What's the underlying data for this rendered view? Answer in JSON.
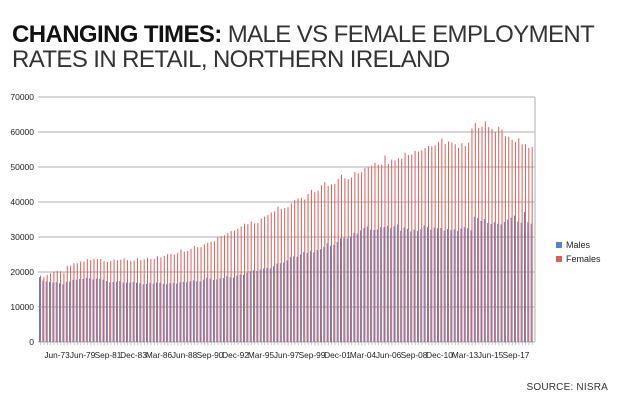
{
  "header": {
    "title_bold": "CHANGING TIMES:",
    "title_rest": " MALE VS FEMALE EMPLOYMENT RATES IN RETAIL, NORTHERN IRELAND"
  },
  "source": "SOURCE: NISRA",
  "colors": {
    "males": "#5b7fc4",
    "females": "#d9605a",
    "grid": "#c8c8c8"
  },
  "chart_data": {
    "type": "bar",
    "title": "CHANGING TIMES: MALE VS FEMALE EMPLOYMENT RATES IN RETAIL, NORTHERN IRELAND",
    "xlabel": "",
    "ylabel": "",
    "ylim": [
      0,
      70000
    ],
    "yticks": [
      "0",
      "10000",
      "20000",
      "30000",
      "40000",
      "50000",
      "60000",
      "70000"
    ],
    "grid": true,
    "legend_position": "right",
    "xtick_labels": [
      "Jun-73",
      "Jun-79",
      "Sep-81",
      "Dec-83",
      "Mar-86",
      "Jun-88",
      "Sep-90",
      "Dec-92",
      "Mar-95",
      "Jun-97",
      "Sep-99",
      "Dec-01",
      "Mar-04",
      "Jun-06",
      "Sep-08",
      "Dec-10",
      "Mar-13",
      "Jun-15",
      "Sep-17"
    ],
    "series": [
      {
        "name": "Males",
        "values": [
          18500,
          17500,
          17300,
          17200,
          17000,
          17100,
          16800,
          16500,
          17200,
          17300,
          17800,
          17800,
          18000,
          18000,
          18300,
          18200,
          17900,
          18100,
          18000,
          17800,
          17400,
          17000,
          17100,
          17200,
          17400,
          17000,
          17000,
          17000,
          17100,
          16900,
          16800,
          16500,
          16600,
          16800,
          16700,
          17000,
          16900,
          16600,
          16500,
          16800,
          16900,
          16700,
          17000,
          17200,
          17100,
          17300,
          17600,
          17400,
          17300,
          17800,
          18400,
          18100,
          17700,
          17900,
          18200,
          18300,
          18800,
          18500,
          18400,
          19000,
          19300,
          19200,
          19800,
          20200,
          20500,
          20300,
          20700,
          21000,
          21200,
          21100,
          21700,
          22400,
          22500,
          22700,
          23300,
          24300,
          24500,
          24400,
          25000,
          25700,
          25500,
          26000,
          25600,
          26300,
          26500,
          27200,
          28200,
          27500,
          27800,
          28600,
          29600,
          29800,
          29600,
          30100,
          31200,
          31000,
          31900,
          32600,
          33000,
          32100,
          32000,
          32200,
          32800,
          32800,
          33200,
          32600,
          33100,
          33600,
          31800,
          32700,
          32300,
          31600,
          32100,
          31700,
          32200,
          33300,
          32800,
          32100,
          32700,
          32500,
          32600,
          31800,
          32300,
          32000,
          32200,
          31700,
          32400,
          32800,
          32500,
          31900,
          35800,
          35400,
          34600,
          35100,
          34000,
          33700,
          34200,
          33800,
          33600,
          34300,
          35000,
          35500,
          36100,
          34400,
          34100,
          37100,
          34200,
          33800
        ]
      },
      {
        "name": "Females",
        "values": [
          19000,
          18500,
          19200,
          19600,
          20100,
          20300,
          20200,
          19800,
          21800,
          21800,
          22500,
          22500,
          23000,
          23000,
          23700,
          23400,
          23700,
          23700,
          23700,
          23100,
          22900,
          23100,
          23600,
          23300,
          23500,
          23900,
          23400,
          23200,
          23300,
          23900,
          23400,
          23600,
          24100,
          23700,
          23800,
          24500,
          24200,
          24600,
          25100,
          25200,
          25000,
          25400,
          26400,
          25800,
          26000,
          26600,
          27400,
          27100,
          27100,
          27900,
          28300,
          28600,
          28800,
          30000,
          30300,
          30500,
          31100,
          31700,
          31800,
          32300,
          33000,
          33800,
          33700,
          34400,
          33900,
          34000,
          35300,
          35800,
          36300,
          37000,
          37300,
          38700,
          38000,
          38300,
          38500,
          39600,
          40600,
          41000,
          41200,
          40700,
          42300,
          43500,
          42800,
          43200,
          44800,
          45700,
          44600,
          45000,
          45200,
          46600,
          47800,
          46800,
          46500,
          47000,
          48600,
          48200,
          48500,
          49700,
          50000,
          50400,
          51200,
          50600,
          50700,
          53300,
          50900,
          52100,
          51900,
          52500,
          52400,
          54100,
          53400,
          53500,
          54600,
          54400,
          54800,
          55400,
          56000,
          55900,
          56200,
          57100,
          58100,
          56600,
          57300,
          57000,
          56500,
          55500,
          56800,
          56000,
          57000,
          61000,
          62600,
          61200,
          61500,
          63000,
          61400,
          60900,
          60000,
          61500,
          60700,
          58800,
          58600,
          57700,
          57100,
          58200,
          56500,
          56500,
          55500,
          55700
        ]
      }
    ]
  }
}
